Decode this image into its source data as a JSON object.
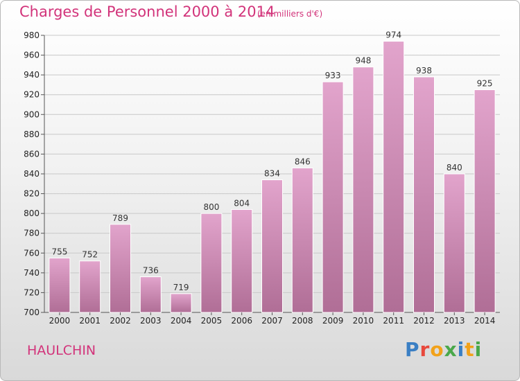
{
  "header": {
    "title": "Charges de Personnel 2000 à 2014",
    "subtitle": "(en milliers d'€)"
  },
  "footer": {
    "commune": "HAULCHIN",
    "logo": "Proxiti"
  },
  "colors": {
    "title": "#d2337a",
    "bar_top": "#e2a4cc",
    "bar_bottom": "#b06e96",
    "grid": "#c8c8c8",
    "logo_letters": [
      "#3a7fc4",
      "#e8483c",
      "#f2a21a",
      "#4aa84a",
      "#3a7fc4",
      "#f2a21a",
      "#4aa84a"
    ]
  },
  "chart_data": {
    "type": "bar",
    "title": "Charges de Personnel 2000 à 2014",
    "subtitle": "(en milliers d'€)",
    "categories": [
      "2000",
      "2001",
      "2002",
      "2003",
      "2004",
      "2005",
      "2006",
      "2007",
      "2008",
      "2009",
      "2010",
      "2011",
      "2012",
      "2013",
      "2014"
    ],
    "values": [
      755,
      752,
      789,
      736,
      719,
      800,
      804,
      834,
      846,
      933,
      948,
      974,
      938,
      840,
      925
    ],
    "ylim": [
      700,
      980
    ],
    "yticks": [
      700,
      720,
      740,
      760,
      780,
      800,
      820,
      840,
      860,
      880,
      900,
      920,
      940,
      960,
      980
    ],
    "xlabel": "",
    "ylabel": "",
    "grid": true
  }
}
